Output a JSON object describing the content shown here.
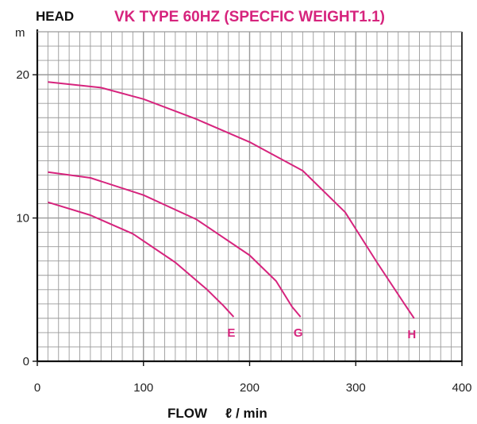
{
  "chart_data": {
    "type": "line",
    "title": "VK TYPE 60HZ (SPECFIC WEIGHT1.1)",
    "ylabel": "HEAD",
    "yunit": "m",
    "xlabel": "FLOW",
    "xlabel_unit": "ℓ / min",
    "xlim": [
      0,
      400
    ],
    "ylim": [
      0,
      23
    ],
    "xticks": [
      "0",
      "100",
      "200",
      "300",
      "400"
    ],
    "yticks": [
      "0",
      "10",
      "20"
    ],
    "grid": true,
    "colors": {
      "curve": "#d6247d",
      "title": "#d6247d",
      "grid": "#9a9a9a",
      "axis": "#111111"
    },
    "series": [
      {
        "name": "E",
        "x": [
          10,
          50,
          90,
          130,
          160,
          175,
          185
        ],
        "y": [
          11.1,
          10.2,
          8.9,
          6.9,
          5.0,
          3.9,
          3.1
        ]
      },
      {
        "name": "G",
        "x": [
          10,
          50,
          100,
          150,
          200,
          225,
          240,
          248
        ],
        "y": [
          13.2,
          12.8,
          11.6,
          9.9,
          7.4,
          5.6,
          3.8,
          3.1
        ]
      },
      {
        "name": "H",
        "x": [
          10,
          60,
          100,
          150,
          200,
          250,
          290,
          320,
          345,
          355
        ],
        "y": [
          19.5,
          19.1,
          18.3,
          16.9,
          15.3,
          13.3,
          10.4,
          6.9,
          4.1,
          3.0
        ]
      }
    ]
  }
}
